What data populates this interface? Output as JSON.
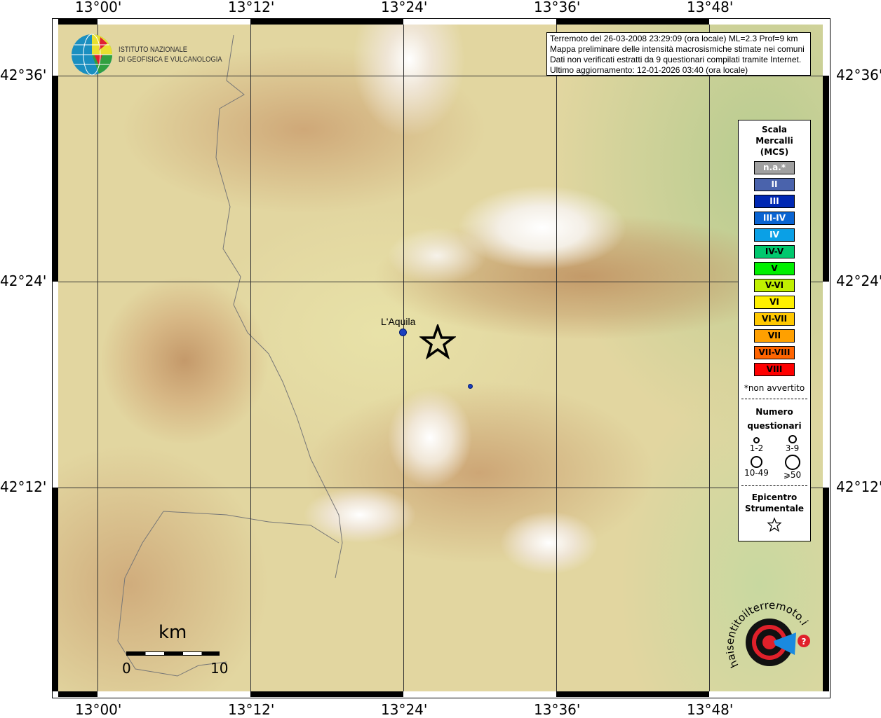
{
  "map": {
    "lon_labels": [
      "13°00'",
      "13°12'",
      "13°24'",
      "13°36'",
      "13°48'"
    ],
    "lat_labels": [
      "42°36'",
      "42°24'",
      "42°12'"
    ],
    "city": "L'Aquila"
  },
  "logo_ingv": {
    "line1": "ISTITUTO NAZIONALE",
    "line2": "DI GEOFISICA E VULCANOLOGIA"
  },
  "info": {
    "lines": [
      "Terremoto del 26-03-2008 23:29:09 (ora locale) ML=2.3 Prof=9 km",
      "Mappa preliminare delle intensità macrosismiche stimate nei comuni",
      "Dati non verificati estratti da 9 questionari compilati tramite Internet.",
      "Ultimo aggiornamento: 12-01-2026 03:40 (ora locale)"
    ]
  },
  "legend": {
    "title": [
      "Scala",
      "Mercalli",
      "(MCS)"
    ],
    "scale": [
      {
        "label": "n.a.*",
        "color": "#a0a0a0"
      },
      {
        "label": "II",
        "color": "#4a63ac"
      },
      {
        "label": "III",
        "color": "#0028b4"
      },
      {
        "label": "III-IV",
        "color": "#0a64d2"
      },
      {
        "label": "IV",
        "color": "#0aa0e6"
      },
      {
        "label": "IV-V",
        "color": "#00c86e"
      },
      {
        "label": "V",
        "color": "#00f000"
      },
      {
        "label": "V-VI",
        "color": "#c0f000"
      },
      {
        "label": "VI",
        "color": "#fff000"
      },
      {
        "label": "VI-VII",
        "color": "#ffc800"
      },
      {
        "label": "VII",
        "color": "#ffa000"
      },
      {
        "label": "VII-VIII",
        "color": "#ff6400"
      },
      {
        "label": "VIII",
        "color": "#ff0000"
      }
    ],
    "note": "*non avvertito",
    "count_title": [
      "Numero",
      "questionari"
    ],
    "counts": [
      "1-2",
      "3-9",
      "10-49",
      "⩾50"
    ],
    "epi_title": [
      "Epicentro",
      "Strumentale"
    ]
  },
  "scalebar": {
    "unit": "km",
    "min": "0",
    "max": "10"
  },
  "logo_hsit": {
    "text": "www.haisentitoilterremoto.it"
  }
}
